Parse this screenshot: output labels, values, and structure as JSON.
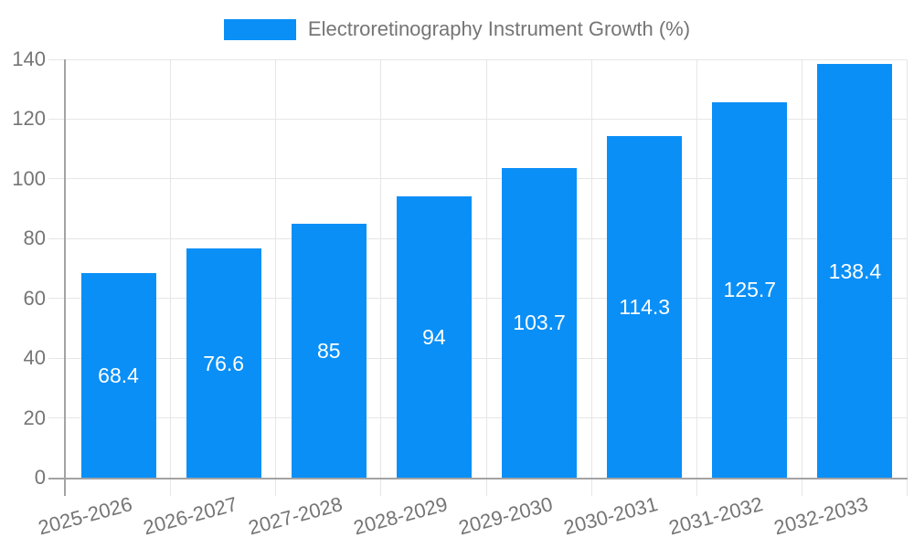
{
  "chart_data": {
    "type": "bar",
    "title": "Electroretinography Instrument Growth (%)",
    "legend_labels": [
      "Electroretinography Instrument Growth (%)"
    ],
    "legend_position": "top",
    "categories": [
      "2025-2026",
      "2026-2027",
      "2027-2028",
      "2028-2029",
      "2029-2030",
      "2030-2031",
      "2031-2032",
      "2032-2033"
    ],
    "values": [
      68.4,
      76.6,
      85,
      94,
      103.7,
      114.3,
      125.7,
      138.4
    ],
    "value_labels": [
      "68.4",
      "76.6",
      "85",
      "94",
      "103.7",
      "114.3",
      "125.7",
      "138.4"
    ],
    "xlabel": "",
    "ylabel": "",
    "ylim": [
      0,
      140
    ],
    "yticks": [
      0,
      20,
      40,
      60,
      80,
      100,
      120,
      140
    ],
    "grid": true
  },
  "colors": {
    "bar": "#0a8ff7",
    "axis_text": "#757575",
    "grid_line": "#e6e6e6",
    "axis_line": "#a3a3a3",
    "value_label": "#ffffff",
    "background": "#ffffff"
  }
}
